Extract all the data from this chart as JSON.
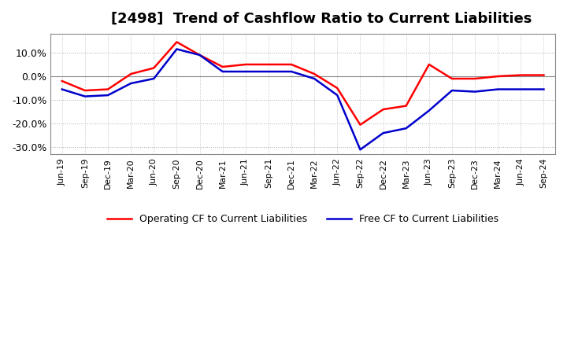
{
  "title": "[2498]  Trend of Cashflow Ratio to Current Liabilities",
  "x_labels": [
    "Jun-19",
    "Sep-19",
    "Dec-19",
    "Mar-20",
    "Jun-20",
    "Sep-20",
    "Dec-20",
    "Mar-21",
    "Jun-21",
    "Sep-21",
    "Dec-21",
    "Mar-22",
    "Jun-22",
    "Sep-22",
    "Dec-22",
    "Mar-23",
    "Jun-23",
    "Sep-23",
    "Dec-23",
    "Mar-24",
    "Jun-24",
    "Sep-24"
  ],
  "operating_cf": [
    -2.0,
    -6.0,
    -5.5,
    1.0,
    3.5,
    14.5,
    9.0,
    4.0,
    5.0,
    5.0,
    5.0,
    1.0,
    -5.0,
    -20.5,
    -14.0,
    -12.5,
    5.0,
    -1.0,
    -1.0,
    0.0,
    0.5,
    0.5
  ],
  "free_cf": [
    -5.5,
    -8.5,
    -8.0,
    -3.0,
    -1.0,
    11.5,
    9.0,
    2.0,
    2.0,
    2.0,
    2.0,
    -1.0,
    -8.0,
    -31.0,
    -24.0,
    -22.0,
    -14.5,
    -6.0,
    -6.5,
    -5.5,
    -5.5,
    -5.5
  ],
  "operating_color": "#ff0000",
  "free_color": "#0000cc",
  "ylim": [
    -33,
    18
  ],
  "yticks": [
    10.0,
    0.0,
    -10.0,
    -20.0,
    -30.0
  ],
  "background_color": "#ffffff",
  "grid_color": "#aaaaaa",
  "title_fontsize": 13,
  "legend_labels": [
    "Operating CF to Current Liabilities",
    "Free CF to Current Liabilities"
  ]
}
